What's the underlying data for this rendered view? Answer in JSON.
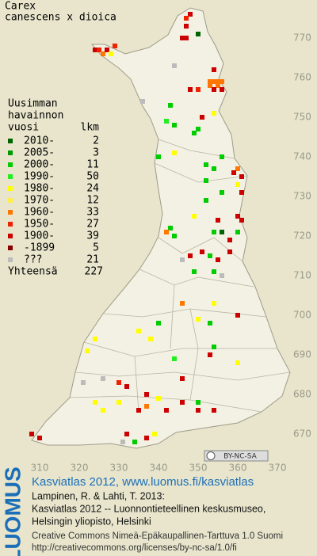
{
  "title": [
    "Carex",
    "canescens x dioica"
  ],
  "legend": {
    "heading": [
      "Uusimman",
      "havainnon",
      "vuosi"
    ],
    "count_heading": "lkm",
    "items": [
      {
        "label": "2010-",
        "count": 2,
        "color": "#006400"
      },
      {
        "label": "2005-",
        "count": 3,
        "color": "#009a00"
      },
      {
        "label": "2000-",
        "count": 11,
        "color": "#00cc00"
      },
      {
        "label": "1990-",
        "count": 50,
        "color": "#22ee22"
      },
      {
        "label": "1980-",
        "count": 24,
        "color": "#ffff00"
      },
      {
        "label": "1970-",
        "count": 12,
        "color": "#ffee44"
      },
      {
        "label": "1960-",
        "count": 33,
        "color": "#ff7700"
      },
      {
        "label": "1950-",
        "count": 27,
        "color": "#ee2200"
      },
      {
        "label": "1900-",
        "count": 39,
        "color": "#cc0000"
      },
      {
        "label": "-1899",
        "count": 5,
        "color": "#880000"
      },
      {
        "label": "???",
        "count": 21,
        "color": "#bbbbbb"
      }
    ],
    "total_label": "Yhteensä",
    "total": 227
  },
  "map": {
    "xlim": [
      300,
      380
    ],
    "ylim": [
      660,
      780
    ],
    "xticks": [
      310,
      320,
      330,
      340,
      350,
      360,
      370
    ],
    "yticks": [
      770,
      760,
      750,
      740,
      730,
      720,
      710,
      700,
      690,
      680,
      670
    ],
    "squares": [
      [
        348,
        776,
        8
      ],
      [
        347,
        775,
        7
      ],
      [
        347,
        773,
        8
      ],
      [
        350,
        771,
        0
      ],
      [
        346,
        770,
        8
      ],
      [
        347,
        770,
        8
      ],
      [
        324,
        767,
        8
      ],
      [
        325,
        767,
        7
      ],
      [
        326,
        766,
        6
      ],
      [
        327,
        767,
        8
      ],
      [
        329,
        768,
        7
      ],
      [
        328,
        766,
        4
      ],
      [
        344,
        763,
        10
      ],
      [
        354,
        762,
        8
      ],
      [
        353,
        759,
        6
      ],
      [
        354,
        759,
        6
      ],
      [
        355,
        759,
        6
      ],
      [
        356,
        759,
        6
      ],
      [
        353,
        758,
        6
      ],
      [
        355,
        758,
        6
      ],
      [
        354,
        757,
        8
      ],
      [
        356,
        757,
        8
      ],
      [
        348,
        757,
        8
      ],
      [
        350,
        757,
        7
      ],
      [
        336,
        754,
        10
      ],
      [
        343,
        753,
        2
      ],
      [
        342,
        749,
        3
      ],
      [
        344,
        748,
        2
      ],
      [
        351,
        750,
        8
      ],
      [
        354,
        751,
        4
      ],
      [
        350,
        747,
        2
      ],
      [
        349,
        746,
        2
      ],
      [
        340,
        740,
        2
      ],
      [
        344,
        741,
        4
      ],
      [
        356,
        740,
        2
      ],
      [
        360,
        737,
        6
      ],
      [
        359,
        736,
        8
      ],
      [
        361,
        735,
        8
      ],
      [
        352,
        738,
        2
      ],
      [
        354,
        737,
        2
      ],
      [
        352,
        734,
        2
      ],
      [
        360,
        733,
        4
      ],
      [
        361,
        731,
        8
      ],
      [
        356,
        731,
        2
      ],
      [
        352,
        729,
        2
      ],
      [
        349,
        725,
        4
      ],
      [
        355,
        724,
        8
      ],
      [
        360,
        725,
        8
      ],
      [
        361,
        724,
        8
      ],
      [
        343,
        722,
        2
      ],
      [
        342,
        721,
        6
      ],
      [
        344,
        720,
        2
      ],
      [
        354,
        721,
        2
      ],
      [
        356,
        721,
        0
      ],
      [
        358,
        719,
        8
      ],
      [
        360,
        721,
        2
      ],
      [
        348,
        715,
        8
      ],
      [
        346,
        714,
        10
      ],
      [
        351,
        716,
        8
      ],
      [
        353,
        715,
        2
      ],
      [
        355,
        714,
        8
      ],
      [
        358,
        716,
        8
      ],
      [
        349,
        711,
        2
      ],
      [
        354,
        711,
        2
      ],
      [
        356,
        710,
        10
      ],
      [
        346,
        703,
        6
      ],
      [
        354,
        703,
        4
      ],
      [
        350,
        699,
        4
      ],
      [
        340,
        698,
        2
      ],
      [
        353,
        698,
        2
      ],
      [
        360,
        700,
        8
      ],
      [
        335,
        696,
        4
      ],
      [
        338,
        694,
        4
      ],
      [
        324,
        694,
        4
      ],
      [
        322,
        691,
        4
      ],
      [
        354,
        692,
        2
      ],
      [
        353,
        690,
        8
      ],
      [
        344,
        689,
        3
      ],
      [
        360,
        688,
        4
      ],
      [
        321,
        683,
        10
      ],
      [
        326,
        684,
        10
      ],
      [
        330,
        683,
        7
      ],
      [
        332,
        682,
        8
      ],
      [
        346,
        684,
        8
      ],
      [
        337,
        680,
        8
      ],
      [
        340,
        679,
        4
      ],
      [
        342,
        676,
        8
      ],
      [
        337,
        677,
        6
      ],
      [
        335,
        676,
        8
      ],
      [
        330,
        678,
        4
      ],
      [
        324,
        678,
        4
      ],
      [
        326,
        676,
        4
      ],
      [
        350,
        678,
        2
      ],
      [
        350,
        676,
        8
      ],
      [
        354,
        676,
        8
      ],
      [
        346,
        678,
        8
      ],
      [
        332,
        670,
        8
      ],
      [
        331,
        668,
        10
      ],
      [
        334,
        668,
        2
      ],
      [
        337,
        669,
        8
      ],
      [
        339,
        670,
        4
      ],
      [
        308,
        670,
        8
      ],
      [
        310,
        669,
        8
      ]
    ]
  },
  "license_badge": "BY-NC-SA",
  "logo": "LUOMUS",
  "footer": {
    "link": "Kasviatlas 2012, www.luomus.fi/kasviatlas",
    "citation": [
      "Lampinen, R. & Lahti, T. 2013:",
      "Kasviatlas 2012 -- Luonnontieteellinen keskusmuseo,",
      "Helsingin yliopisto, Helsinki"
    ],
    "license": [
      "Creative Commons Nimeä-Epäkaupallinen-Tarttuva 1.0 Suomi",
      "http://creativecommons.org/licenses/by-nc-sa/1.0/fi"
    ]
  }
}
